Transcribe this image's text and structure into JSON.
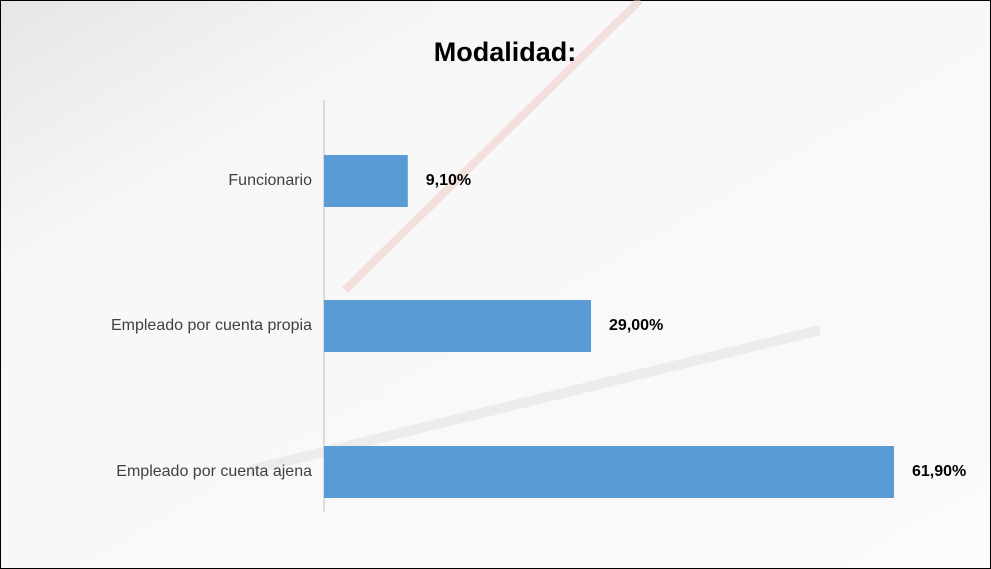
{
  "chart_data": {
    "type": "hbar",
    "title": "Modalidad:",
    "categories": [
      "Funcionario",
      "Empleado por cuenta propia",
      "Empleado por cuenta ajena"
    ],
    "values": [
      9.1,
      29.0,
      61.9
    ],
    "value_labels": [
      "9,10%",
      "29,00%",
      "61,90%"
    ],
    "color": "#5b9bd5"
  }
}
